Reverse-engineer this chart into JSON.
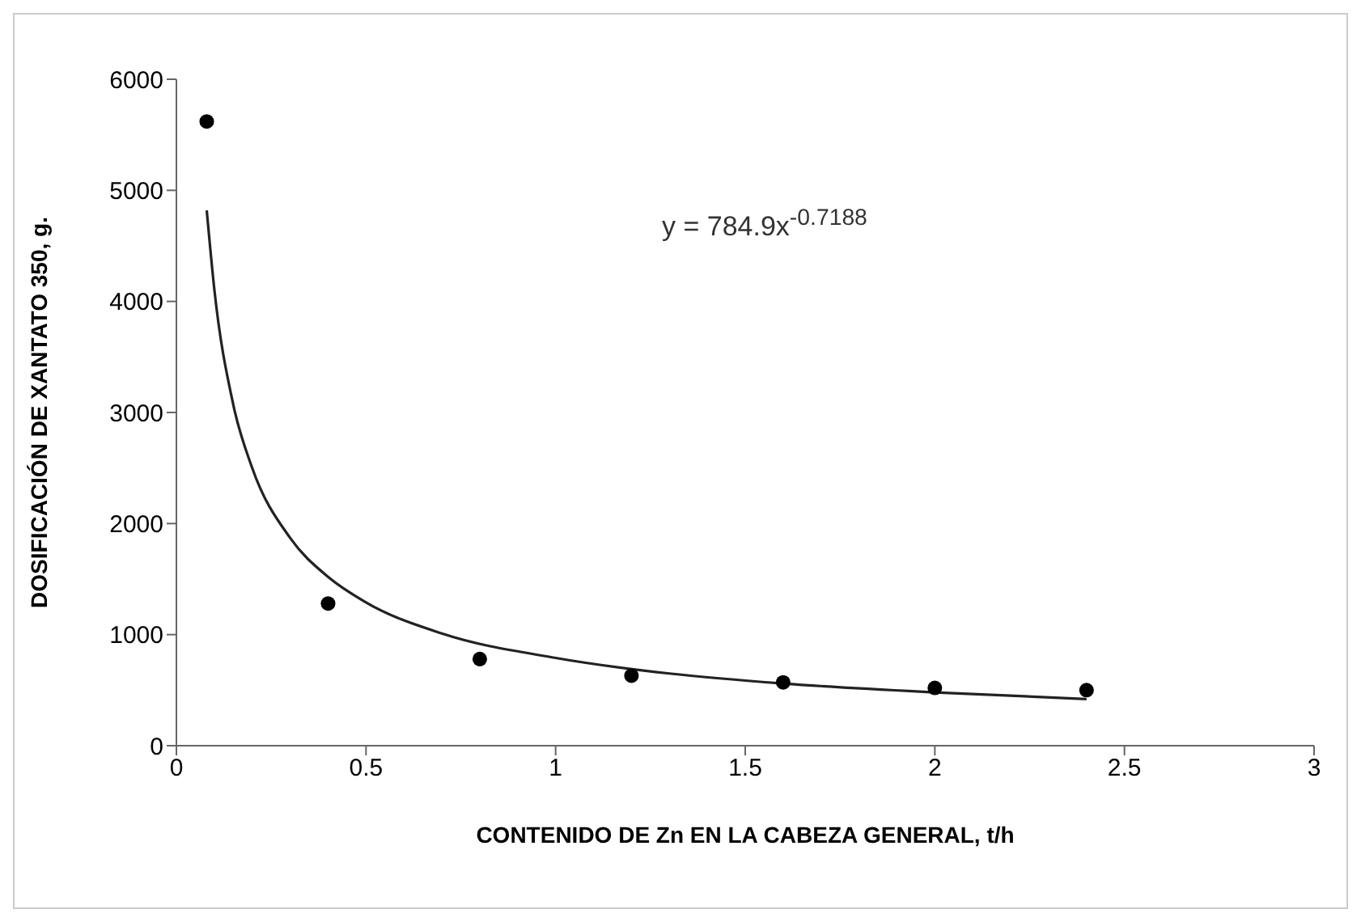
{
  "chart_data": {
    "type": "scatter",
    "xlabel": "CONTENIDO DE Zn EN LA CABEZA GENERAL, t/h",
    "ylabel": "DOSIFICACIÓN DE XANTATO 350, g.",
    "xlim": [
      0,
      3
    ],
    "xticks": [
      0,
      0.5,
      1,
      1.5,
      2,
      2.5,
      3
    ],
    "ylim": [
      0,
      6000
    ],
    "yticks": [
      0,
      1000,
      2000,
      3000,
      4000,
      5000,
      6000
    ],
    "grid": false,
    "legend": false,
    "annotations": [
      "y = 784.9x$^{-0.7188}$"
    ],
    "series": [
      {
        "color": "#000000",
        "marker": "circle",
        "x": [
          0.08,
          0.4,
          0.8,
          1.2,
          1.6,
          2.0,
          2.4
        ],
        "values": [
          5620,
          1280,
          780,
          630,
          570,
          520,
          500
        ]
      },
      {
        "type": "line",
        "color": "#222222",
        "marker": "none",
        "x": [
          0.08,
          0.1,
          0.15,
          0.2,
          0.3,
          0.4,
          0.5,
          0.7,
          1,
          1.3,
          1.6,
          2,
          2.4
        ],
        "values": [
          4820,
          4110,
          3070,
          2500,
          1870,
          1520,
          1290,
          1010,
          790,
          650,
          560,
          480,
          420
        ]
      }
    ]
  }
}
